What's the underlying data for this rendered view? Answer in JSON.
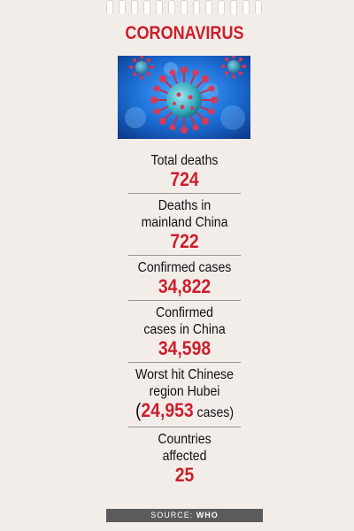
{
  "title": "CORONAVIRUS",
  "image": {
    "icon": "coronavirus-illustration"
  },
  "stats": [
    {
      "label": "Total deaths",
      "value": "724"
    },
    {
      "label": "Deaths in\nmainland China",
      "value": "722"
    },
    {
      "label": "Confirmed cases",
      "value": "34,822"
    },
    {
      "label": "Confirmed\ncases in China",
      "value": "34,598"
    },
    {
      "label": "Worst hit Chinese\nregion Hubei",
      "value_open": "(",
      "value": "24,953",
      "value_suffix": " cases)"
    },
    {
      "label": "Countries affected",
      "value": "25"
    }
  ],
  "source": {
    "prefix": "SOURCE: ",
    "name": "WHO"
  },
  "colors": {
    "accent": "#cc1f2b",
    "background": "#f3edea",
    "source_bar": "#5b5b5b"
  }
}
